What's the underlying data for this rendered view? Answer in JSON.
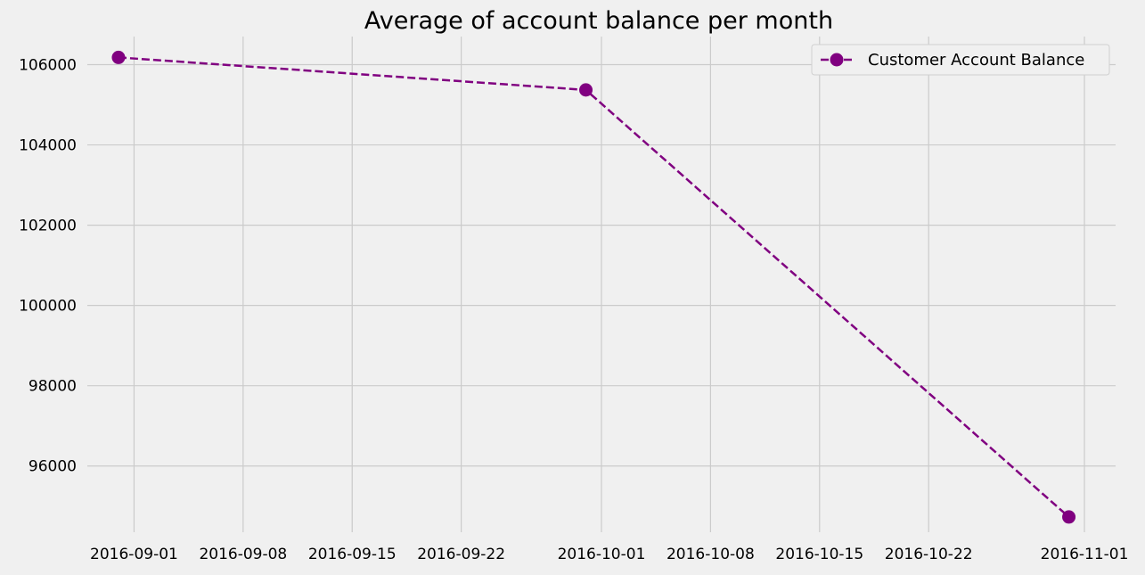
{
  "chart_data": {
    "type": "line",
    "title": "Average of account balance per month",
    "xlabel": "",
    "ylabel": "",
    "x_axis": {
      "kind": "date",
      "range": [
        "2016-08-29",
        "2016-11-03"
      ],
      "ticks": [
        "2016-09-01",
        "2016-09-08",
        "2016-09-15",
        "2016-09-22",
        "2016-10-01",
        "2016-10-08",
        "2016-10-15",
        "2016-10-22",
        "2016-11-01"
      ]
    },
    "y_axis": {
      "range": [
        94350,
        106700
      ],
      "ticks": [
        96000,
        98000,
        100000,
        102000,
        104000,
        106000
      ]
    },
    "grid": true,
    "legend": {
      "position": "top-right"
    },
    "series": [
      {
        "name": "Customer Account Balance",
        "color": "#800080",
        "line_style": "dashed",
        "marker": "circle",
        "points": [
          {
            "x": "2016-08-31",
            "y": 106180
          },
          {
            "x": "2016-09-30",
            "y": 105370
          },
          {
            "x": "2016-10-31",
            "y": 94730
          }
        ]
      }
    ]
  }
}
